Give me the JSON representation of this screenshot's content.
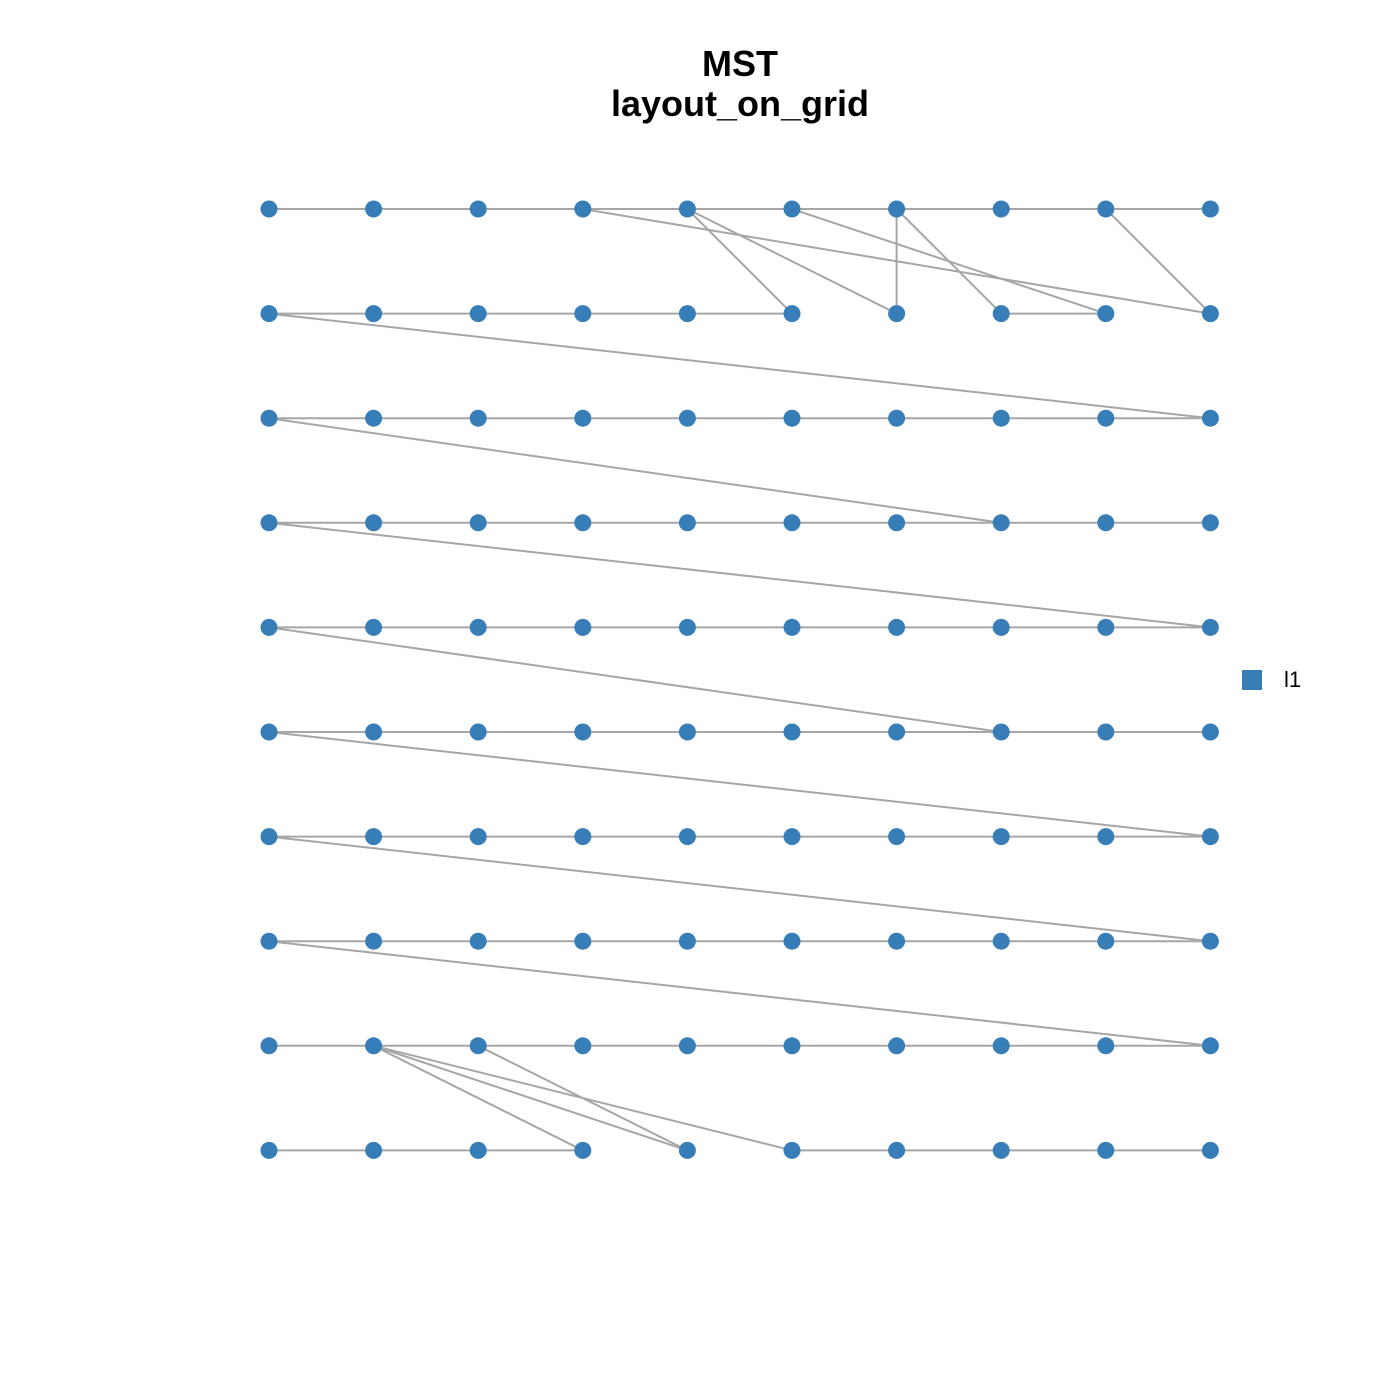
{
  "header": {
    "title": "MST",
    "subtitle": "layout_on_grid"
  },
  "legend": {
    "items": [
      {
        "label": "l1",
        "color": "#377eb8"
      }
    ]
  }
}
